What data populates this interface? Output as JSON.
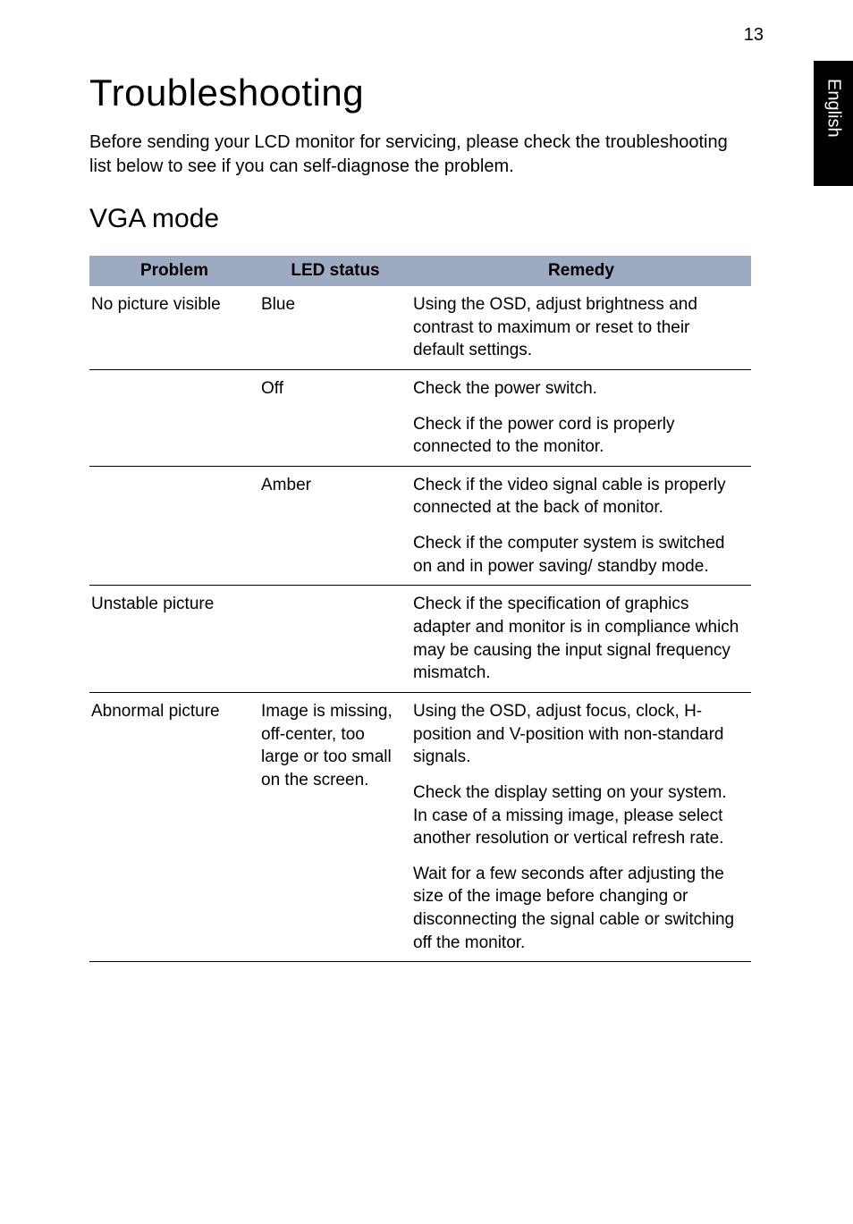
{
  "page_number": "13",
  "side_tab": "English",
  "heading": "Troubleshooting",
  "intro": "Before sending your LCD monitor for servicing, please check the troubleshooting list below to see if you can self-diagnose the problem.",
  "subheading": "VGA mode",
  "table": {
    "headers": {
      "problem": "Problem",
      "led": "LED status",
      "remedy": "Remedy"
    },
    "rows": {
      "r0_problem": "No picture visible",
      "r0_led": "Blue",
      "r0_remedy": "Using the OSD, adjust brightness and contrast to maximum or reset to their default settings.",
      "r1_led": "Off",
      "r1_remedy_a": "Check the power switch.",
      "r1_remedy_b": "Check if the power cord is properly connected to the monitor.",
      "r2_led": "Amber",
      "r2_remedy_a": "Check if the video signal cable is properly connected at the back of monitor.",
      "r2_remedy_b": "Check if the computer system is switched on and in power saving/ standby mode.",
      "r3_problem": "Unstable picture",
      "r3_remedy": "Check if the specification of graphics adapter and monitor is in compliance which may be causing the input signal frequency mismatch.",
      "r4_problem": "Abnormal picture",
      "r4_led": "Image is missing, off-center, too large or too small on the screen.",
      "r4_remedy_a": "Using the OSD, adjust focus, clock, H-position and V-position with non-standard signals.",
      "r4_remedy_b": "Check the display setting on your system. In case of a missing image, please select another resolution or vertical refresh rate.",
      "r4_remedy_c": "Wait for a few seconds after adjusting the size of the image before changing or disconnecting the signal cable or switching off the monitor."
    }
  }
}
